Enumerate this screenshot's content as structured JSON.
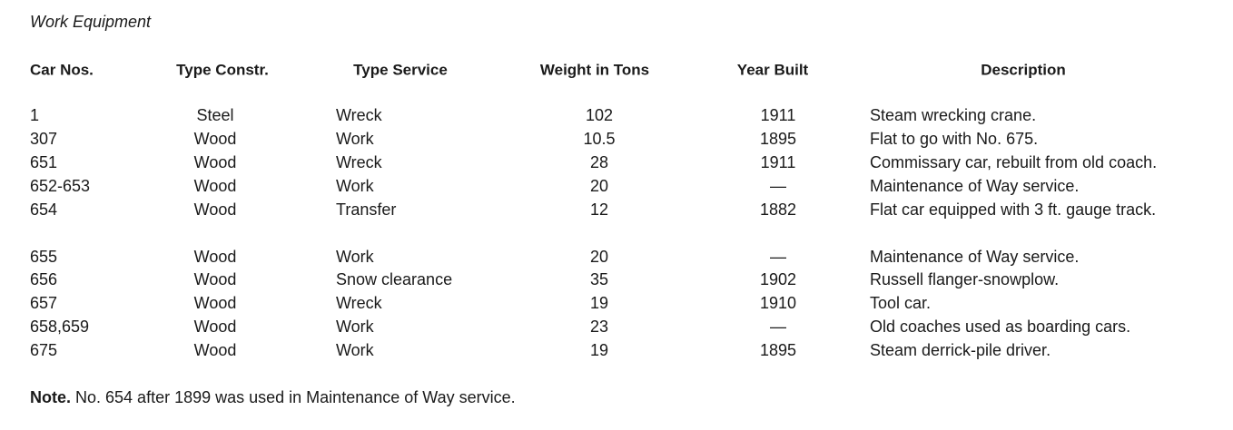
{
  "title": "Work Equipment",
  "table": {
    "headers": [
      "Car Nos.",
      "Type Constr.",
      "Type Service",
      "Weight in Tons",
      "Year Built",
      "Description"
    ],
    "groups": [
      [
        [
          "1",
          "Steel",
          "Wreck",
          "102",
          "1911",
          "Steam wrecking crane."
        ],
        [
          "307",
          "Wood",
          "Work",
          "10.5",
          "1895",
          "Flat to go with No. 675."
        ],
        [
          "651",
          "Wood",
          "Wreck",
          "28",
          "1911",
          "Commissary car, rebuilt from old coach."
        ],
        [
          "652-653",
          "Wood",
          "Work",
          "20",
          "—",
          "Maintenance of Way service."
        ],
        [
          "654",
          "Wood",
          "Transfer",
          "12",
          "1882",
          "Flat car equipped with 3 ft. gauge track."
        ]
      ],
      [
        [
          "655",
          "Wood",
          "Work",
          "20",
          "—",
          "Maintenance of Way service."
        ],
        [
          "656",
          "Wood",
          "Snow clearance",
          "35",
          "1902",
          "Russell flanger-snowplow."
        ],
        [
          "657",
          "Wood",
          "Wreck",
          "19",
          "1910",
          "Tool car."
        ],
        [
          "658,659",
          "Wood",
          "Work",
          "23",
          "—",
          "Old coaches used as boarding cars."
        ],
        [
          "675",
          "Wood",
          "Work",
          "19",
          "1895",
          "Steam derrick-pile driver."
        ]
      ]
    ]
  },
  "note": {
    "label": "Note.",
    "text": "No. 654 after 1899 was used in Maintenance of Way service."
  }
}
